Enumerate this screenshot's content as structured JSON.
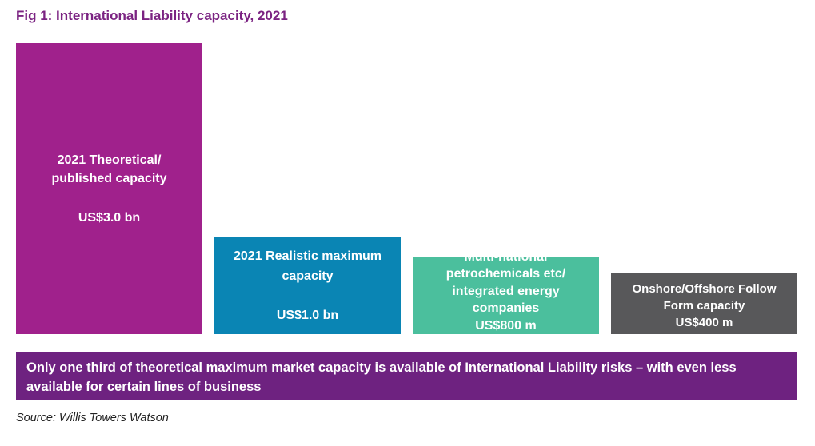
{
  "title": "Fig 1: International Liability capacity, 2021",
  "chart_data": {
    "type": "bar",
    "title": "Fig 1: International Liability capacity, 2021",
    "unit": "US$ m",
    "ylim": [
      0,
      3000
    ],
    "grid": false,
    "legend": "none",
    "bars": [
      {
        "label": "2021 Theoretical/\npublished capacity",
        "value_label": "US$3.0 bn",
        "value": 3000,
        "color": "#a0218c"
      },
      {
        "label": "2021 Realistic maximum\ncapacity",
        "value_label": "US$1.0 bn",
        "value": 1000,
        "color": "#0a85b4"
      },
      {
        "label": "Multi-national\npetrochemicals etc/\nintegrated energy\ncompanies",
        "value_label": "US$800 m",
        "value": 800,
        "color": "#4bbf9d"
      },
      {
        "label": "Onshore/Offshore Follow\nForm capacity",
        "value_label": "US$400 m",
        "value": 400,
        "color": "#58585a"
      }
    ]
  },
  "banner": "Only one third of theoretical maximum market capacity is available of International Liability risks – with even less available for certain lines of business",
  "source": "Source: Willis Towers Watson",
  "colors": {
    "title": "#7b2382",
    "banner": "#6e2280"
  }
}
